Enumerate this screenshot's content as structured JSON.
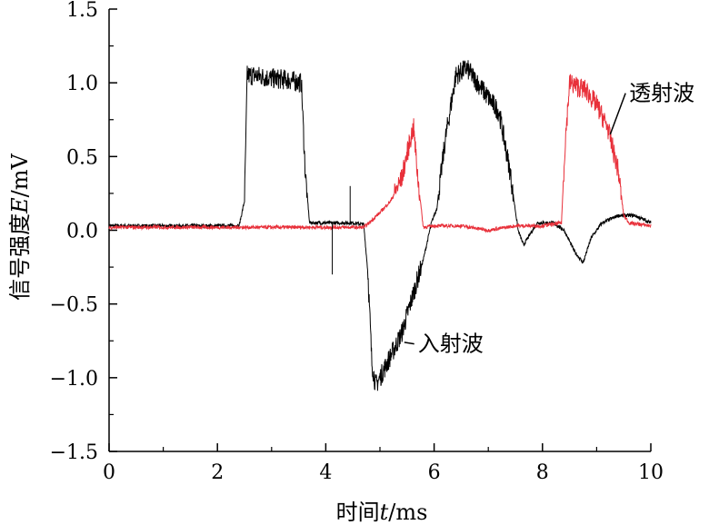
{
  "chart_data": {
    "type": "line",
    "title": "",
    "xlabel_prefix": "时间",
    "xlabel_var": "t",
    "xlabel_unit": "/ms",
    "ylabel_prefix": "信号强度",
    "ylabel_var": "E",
    "ylabel_unit": "/mV",
    "xlim": [
      0,
      10
    ],
    "ylim": [
      -1.5,
      1.5
    ],
    "xticks": [
      0,
      2,
      4,
      6,
      8,
      10
    ],
    "yticks": [
      -1.5,
      -1.0,
      -0.5,
      0.0,
      0.5,
      1.0,
      1.5
    ],
    "xtick_labels": [
      "0",
      "2",
      "4",
      "6",
      "8",
      "10"
    ],
    "ytick_labels": [
      "−1.5",
      "−1.0",
      "−0.5",
      "0.0",
      "0.5",
      "1.0",
      "1.5"
    ],
    "grid": false,
    "series": [
      {
        "name": "入射波",
        "color": "#000000",
        "x": [
          0,
          2.4,
          2.5,
          2.55,
          2.7,
          3.0,
          3.3,
          3.55,
          3.62,
          3.7,
          3.9,
          4.2,
          4.5,
          4.7,
          4.78,
          4.85,
          4.92,
          5.0,
          5.2,
          5.4,
          5.6,
          5.8,
          5.95,
          6.05,
          6.2,
          6.4,
          6.6,
          6.8,
          7.0,
          7.2,
          7.4,
          7.55,
          7.65,
          7.9,
          8.2,
          8.4,
          8.6,
          8.75,
          8.9,
          9.1,
          9.4,
          9.7,
          10.0
        ],
        "y": [
          0.03,
          0.03,
          0.2,
          1.05,
          1.05,
          1.03,
          1.02,
          1.0,
          0.4,
          0.05,
          0.05,
          0.05,
          0.05,
          0.04,
          -0.3,
          -0.9,
          -1.05,
          -1.0,
          -0.85,
          -0.7,
          -0.45,
          -0.2,
          0.05,
          0.15,
          0.6,
          1.05,
          1.1,
          1.0,
          0.9,
          0.8,
          0.4,
          0.0,
          -0.1,
          0.05,
          0.05,
          0.0,
          -0.15,
          -0.22,
          -0.05,
          0.05,
          0.1,
          0.1,
          0.05
        ]
      },
      {
        "name": "透射波",
        "color": "#e8303a",
        "x": [
          0,
          4.7,
          4.8,
          5.0,
          5.2,
          5.4,
          5.55,
          5.62,
          5.7,
          5.8,
          6.0,
          6.5,
          7.0,
          7.5,
          8.0,
          8.35,
          8.42,
          8.5,
          8.8,
          9.0,
          9.2,
          9.4,
          9.5,
          9.6,
          10.0
        ],
        "y": [
          0.02,
          0.02,
          0.05,
          0.12,
          0.2,
          0.35,
          0.6,
          0.7,
          0.35,
          0.02,
          0.03,
          0.03,
          0.0,
          0.03,
          0.03,
          0.05,
          0.6,
          1.0,
          0.95,
          0.85,
          0.7,
          0.4,
          0.1,
          0.05,
          0.03
        ]
      }
    ],
    "annotations": [
      {
        "text": "入射波",
        "x": 5.7,
        "y": -0.82,
        "arrow_to": [
          5.45,
          -0.76
        ]
      },
      {
        "text": "透射波",
        "x": 9.6,
        "y": 0.88,
        "arrow_to": [
          9.25,
          0.65
        ]
      }
    ]
  }
}
